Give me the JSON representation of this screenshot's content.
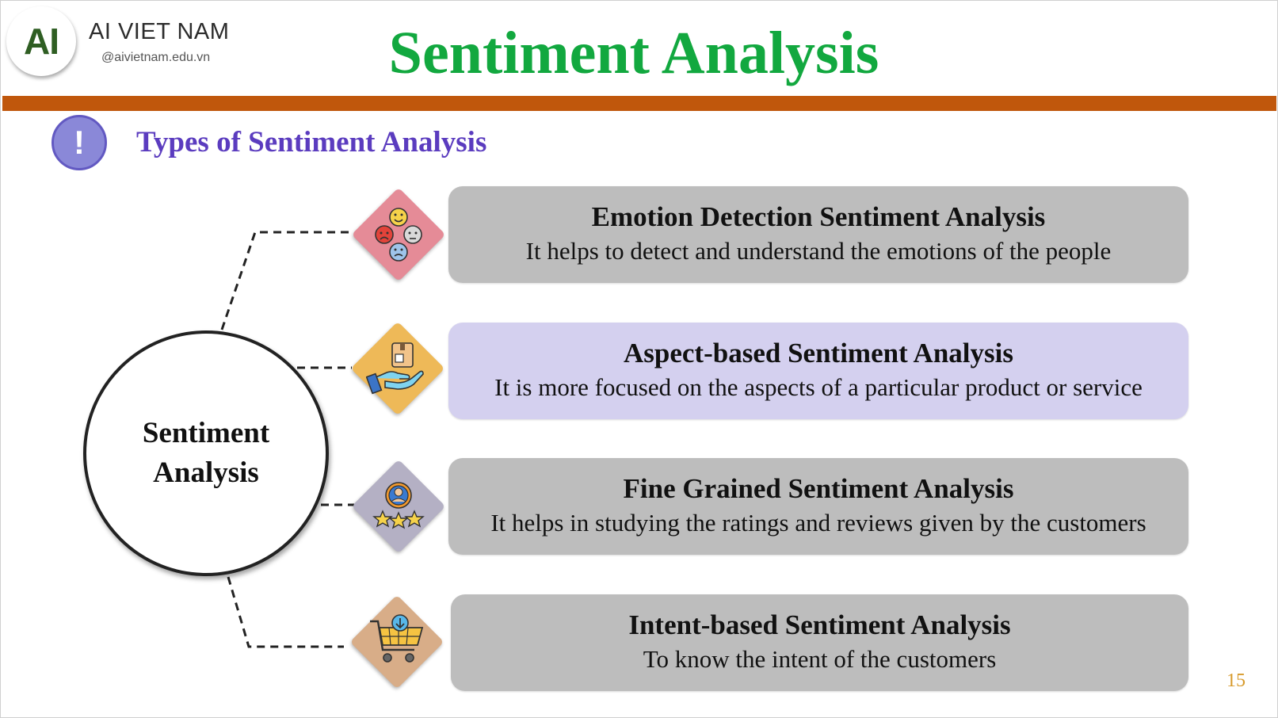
{
  "brand": {
    "logo_text": "AI",
    "name": "AI VIET NAM",
    "url": "@aivietnam.edu.vn"
  },
  "title": "Sentiment Analysis",
  "subtitle": {
    "icon_text": "!",
    "text": "Types of Sentiment Analysis"
  },
  "center": {
    "line1": "Sentiment",
    "line2": "Analysis"
  },
  "types": [
    {
      "title": "Emotion Detection Sentiment Analysis",
      "description": "It helps to detect and understand the emotions of the people",
      "icon": "emotion-faces-icon",
      "diamond_color": "#e58b97",
      "card_color": "#bdbdbd"
    },
    {
      "title": "Aspect-based Sentiment Analysis",
      "description": "It is more focused on the aspects of a particular product or service",
      "icon": "hand-product-icon",
      "diamond_color": "#eeb958",
      "card_color": "#d4d0ef"
    },
    {
      "title": "Fine Grained Sentiment Analysis",
      "description": "It helps in studying the ratings and reviews given by the customers",
      "icon": "user-rating-stars-icon",
      "diamond_color": "#b4b0c4",
      "card_color": "#bdbdbd"
    },
    {
      "title": "Intent-based Sentiment Analysis",
      "description": "To know the intent of the customers",
      "icon": "shopping-cart-icon",
      "diamond_color": "#d8ad88",
      "card_color": "#bdbdbd"
    }
  ],
  "page_number": "15"
}
